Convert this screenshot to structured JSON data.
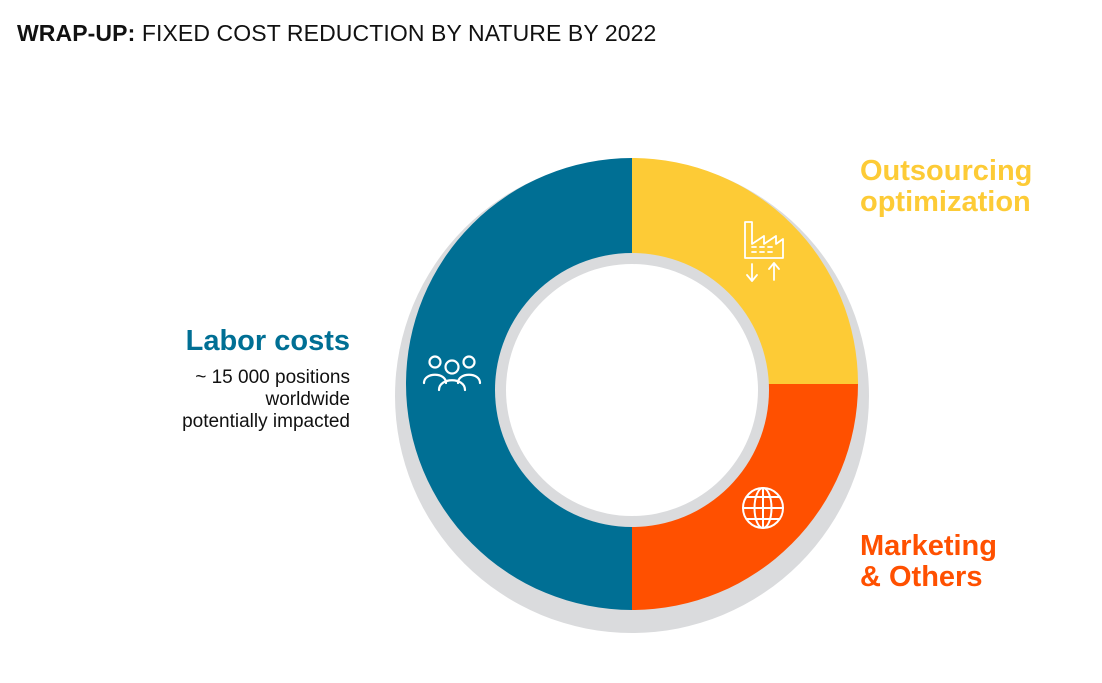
{
  "title": {
    "bold": "WRAP-UP:",
    "rest": " FIXED COST REDUCTION BY NATURE BY 2022"
  },
  "colors": {
    "labor": "#006F94",
    "outsourcing": "#FDCB36",
    "marketing": "#FF5000",
    "ring": "#DADBDD"
  },
  "segments": [
    {
      "key": "outsourcing",
      "lines": [
        "Outsourcing",
        "optimization"
      ],
      "icon": "factory-arrows-icon"
    },
    {
      "key": "marketing",
      "lines": [
        "Marketing",
        "& Others"
      ],
      "icon": "globe-icon"
    },
    {
      "key": "labor",
      "lines": [
        "Labor costs"
      ],
      "detail": [
        "~ 15 000 positions",
        "worldwide",
        "potentially impacted"
      ],
      "icon": "people-group-icon"
    }
  ]
}
